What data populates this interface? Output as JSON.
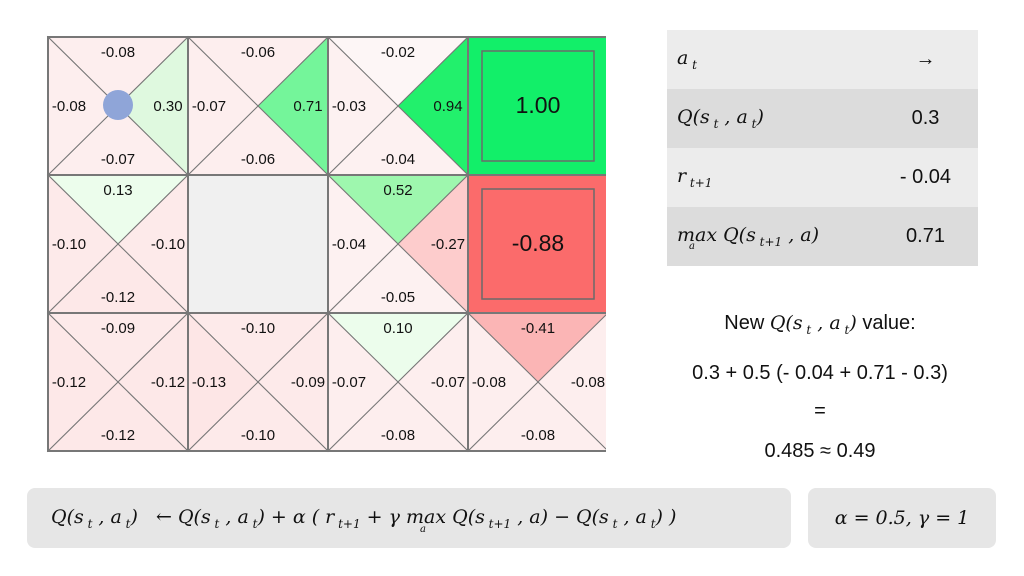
{
  "grid": {
    "cells": [
      {
        "row": 0,
        "col": 0,
        "type": "q",
        "up": "-0.08",
        "right": "0.30",
        "down": "-0.07",
        "left": "-0.08",
        "agent": true,
        "colors": {
          "up": "#fdeeee",
          "right": "#dff9df",
          "down": "#fdeeee",
          "left": "#fdeeee"
        }
      },
      {
        "row": 0,
        "col": 1,
        "type": "q",
        "up": "-0.06",
        "right": "0.71",
        "down": "-0.06",
        "left": "-0.07",
        "colors": {
          "up": "#fdeeee",
          "right": "#74f59a",
          "down": "#fdeeee",
          "left": "#fdeeee"
        }
      },
      {
        "row": 0,
        "col": 2,
        "type": "q",
        "up": "-0.02",
        "right": "0.94",
        "down": "-0.04",
        "left": "-0.03",
        "colors": {
          "up": "#fdf6f6",
          "right": "#22f06c",
          "down": "#fdf1f1",
          "left": "#fdf1f1"
        }
      },
      {
        "row": 0,
        "col": 3,
        "type": "terminal",
        "value": "1.00",
        "color": "#12ef69"
      },
      {
        "row": 1,
        "col": 0,
        "type": "q",
        "up": "0.13",
        "right": "-0.10",
        "down": "-0.12",
        "left": "-0.10",
        "colors": {
          "up": "#ecfdec",
          "right": "#fdeaea",
          "down": "#fde8e8",
          "left": "#fdeaea"
        }
      },
      {
        "row": 1,
        "col": 1,
        "type": "wall",
        "color": "#f0f0f0"
      },
      {
        "row": 1,
        "col": 2,
        "type": "q",
        "up": "0.52",
        "right": "-0.27",
        "down": "-0.05",
        "left": "-0.04",
        "colors": {
          "up": "#9ef7ae",
          "right": "#fdcccc",
          "down": "#fdf1f1",
          "left": "#fdf1f1"
        }
      },
      {
        "row": 1,
        "col": 3,
        "type": "terminal",
        "value": "-0.88",
        "color": "#fb6b6b"
      },
      {
        "row": 2,
        "col": 0,
        "type": "q",
        "up": "-0.09",
        "right": "-0.12",
        "down": "-0.12",
        "left": "-0.12",
        "colors": {
          "up": "#fdeaea",
          "right": "#fde8e8",
          "down": "#fde8e8",
          "left": "#fde8e8"
        }
      },
      {
        "row": 2,
        "col": 1,
        "type": "q",
        "up": "-0.10",
        "right": "-0.09",
        "down": "-0.10",
        "left": "-0.13",
        "colors": {
          "up": "#fdeaea",
          "right": "#fdeaea",
          "down": "#fdeaea",
          "left": "#fde6e6"
        }
      },
      {
        "row": 2,
        "col": 2,
        "type": "q",
        "up": "0.10",
        "right": "-0.07",
        "down": "-0.08",
        "left": "-0.07",
        "colors": {
          "up": "#ecfdec",
          "right": "#fdeeee",
          "down": "#fdeeee",
          "left": "#fdeeee"
        }
      },
      {
        "row": 2,
        "col": 3,
        "type": "q",
        "up": "-0.41",
        "right": "-0.08",
        "down": "-0.08",
        "left": "-0.08",
        "colors": {
          "up": "#fbb5b5",
          "right": "#fdeeee",
          "down": "#fdeeee",
          "left": "#fdeeee"
        }
      }
    ],
    "agent_color": "#8fa5d8"
  },
  "table": {
    "rows": [
      {
        "label_html": "a<span class='sub'> t</span>",
        "value": "→"
      },
      {
        "label_html": "Q(s<span class='sub'> t</span> , a<span class='sub'> t</span>)",
        "value": "0.3"
      },
      {
        "label_html": "r<span class='sub'> t+1</span>",
        "value": "- 0.04"
      },
      {
        "label_html": "max Q(s<span class='sub'> t+1</span> , a)",
        "value": "0.71",
        "max_sub": "a"
      }
    ]
  },
  "calc": {
    "title_prefix": "New",
    "title_suffix": "value:",
    "title_math_html": "Q(s<span class='sub'> t</span> , a<span class='sub'> t</span>)",
    "line1": "0.3 + 0.5 (- 0.04 + 0.71 - 0.3)",
    "line2": "=",
    "line3": "0.485 ≈ 0.49"
  },
  "formula_html": "Q(s<span class='sub'> t</span> , a<span class='sub'> t</span>) &nbsp;&nbsp;← Q(s<span class='sub'> t</span> , a<span class='sub'> t</span>) + α ( r<span class='sub'> t+1</span> + γ max Q(s<span class='sub'> t+1</span> , a) − Q(s<span class='sub'> t</span> , a<span class='sub'> t</span>) )",
  "formula_max_sub": "a",
  "params_text": "α = 0.5,  γ = 1"
}
